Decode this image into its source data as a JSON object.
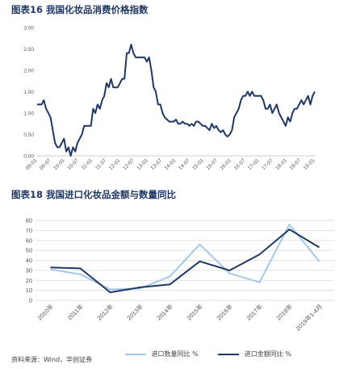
{
  "figure16": {
    "title": "图表16 我国化妆品消费价格指数"
  },
  "figure18": {
    "title": "图表18 我国进口化妆品金额与数量同比"
  },
  "source": "资料来源：Wind，华创证券",
  "chart_data": [
    {
      "type": "line",
      "title": "图表16 我国化妆品消费价格指数",
      "ylim": [
        0,
        3.0
      ],
      "yticks": [
        "0.00",
        "0.50",
        "1.00",
        "1.50",
        "2.00",
        "2.50",
        "3.00"
      ],
      "xticks": [
        "09-01",
        "09-07",
        "10-01",
        "10-07",
        "11-01",
        "11-07",
        "12-01",
        "12-07",
        "13-01",
        "13-07",
        "14-01",
        "14-07",
        "15-01",
        "15-07",
        "16-01",
        "16-07",
        "17-01",
        "17-07",
        "18-01",
        "18-07",
        "19-01"
      ],
      "grid": false,
      "color": "#1f3864",
      "series": [
        {
          "values": [
            1.2,
            1.2,
            1.2,
            1.3,
            1.1,
            1.0,
            0.9,
            0.6,
            0.3,
            0.2,
            0.2,
            0.3,
            0.4,
            0.1,
            0.2,
            0.0,
            0.2,
            0.1,
            0.3,
            0.4,
            0.5,
            0.7,
            0.7,
            0.7,
            0.7,
            1.1,
            1.0,
            1.2,
            1.1,
            1.3,
            1.4,
            1.7,
            1.6,
            1.8,
            1.6,
            1.6,
            1.6,
            1.7,
            1.8,
            1.8,
            2.4,
            2.4,
            2.6,
            2.4,
            2.3,
            2.3,
            2.3,
            2.3,
            2.3,
            2.2,
            2.3,
            2.0,
            1.6,
            1.5,
            1.2,
            1.2,
            1.0,
            0.9,
            0.85,
            0.8,
            0.8,
            0.8,
            0.85,
            0.75,
            0.75,
            0.8,
            0.75,
            0.75,
            0.7,
            0.75,
            0.7,
            0.8,
            0.8,
            0.75,
            0.7,
            0.7,
            0.65,
            0.6,
            0.75,
            0.65,
            0.7,
            0.6,
            0.55,
            0.6,
            0.5,
            0.45,
            0.5,
            0.6,
            0.9,
            1.0,
            1.1,
            1.3,
            1.4,
            1.4,
            1.5,
            1.4,
            1.5,
            1.4,
            1.4,
            1.4,
            1.4,
            1.3,
            1.1,
            1.1,
            1.2,
            1.0,
            1.1,
            1.2,
            1.0,
            0.9,
            0.8,
            0.7,
            0.9,
            0.8,
            1.0,
            1.1,
            1.1,
            1.2,
            1.3,
            1.2,
            1.3,
            1.4,
            1.2,
            1.4,
            1.5
          ]
        }
      ]
    },
    {
      "type": "line",
      "title": "图表18 我国进口化妆品金额与数量同比",
      "categories": [
        "2010年",
        "2011年",
        "2012年",
        "2013年",
        "2014年",
        "2015年",
        "2016年",
        "2017年",
        "2018年",
        "2019年1-4月"
      ],
      "ylim": [
        0,
        80
      ],
      "yticks": [
        "0",
        "10",
        "20",
        "30",
        "40",
        "50",
        "60",
        "70",
        "80"
      ],
      "grid": true,
      "legend": "bottom",
      "series": [
        {
          "name": "进口数量同比 %",
          "color": "#a6c8e8",
          "values": [
            31,
            26,
            11,
            12,
            24,
            56,
            27,
            18,
            76,
            39
          ]
        },
        {
          "name": "进口金额同比 %",
          "color": "#1f3864",
          "values": [
            33,
            32,
            8,
            13,
            16,
            39,
            30,
            46,
            71,
            53
          ]
        }
      ]
    }
  ]
}
